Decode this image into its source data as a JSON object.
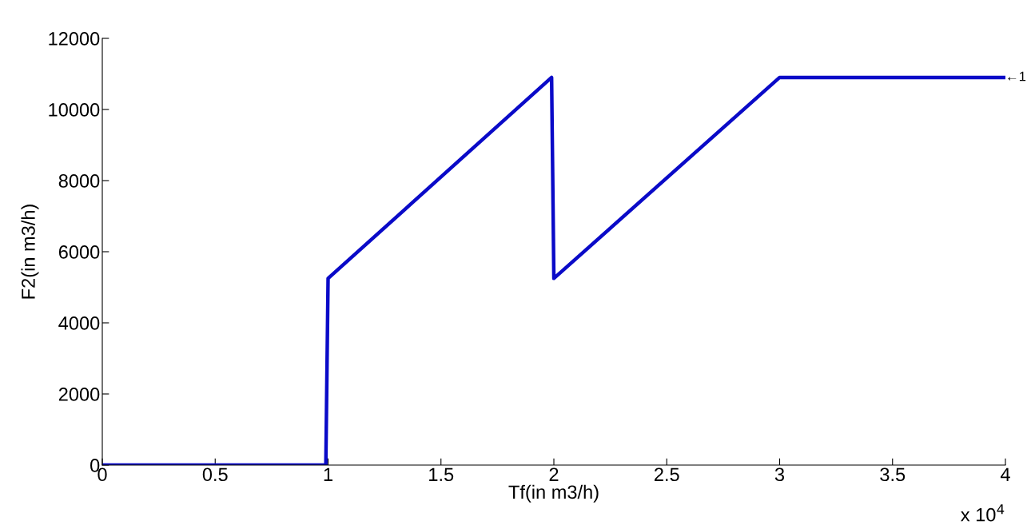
{
  "chart_data": {
    "type": "line",
    "xlabel": "Tf(in m3/h)",
    "ylabel": "F2(in m3/h)",
    "x": [
      0,
      0.99,
      1.0,
      1.99,
      2.0,
      3.0,
      4.0
    ],
    "series": [
      {
        "color": "#0a0ac8",
        "values": [
          0,
          0,
          5250,
          10900,
          5250,
          10900,
          10900
        ]
      }
    ],
    "xlim": [
      0,
      4
    ],
    "xticks": [
      0,
      0.5,
      1,
      1.5,
      2,
      2.5,
      3,
      3.5,
      4
    ],
    "ylim": [
      0,
      12000
    ],
    "yticks": [
      0,
      2000,
      4000,
      6000,
      8000,
      10000,
      12000
    ],
    "grid": false,
    "marker": "none",
    "line_style": "solid",
    "annotations": [
      {
        "text": "←1",
        "x": 4,
        "y": 10900
      },
      "x 10$^{4}$"
    ]
  }
}
